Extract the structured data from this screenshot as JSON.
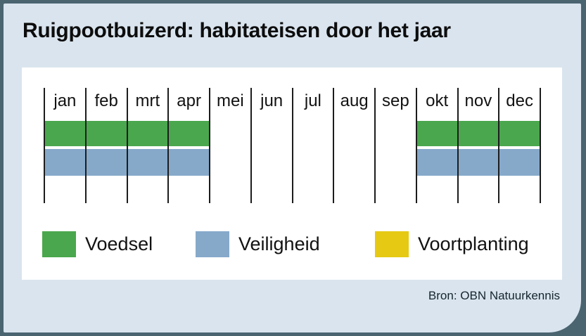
{
  "title": "Ruigpootbuizerd: habitateisen door het jaar",
  "source": "Bron: OBN Natuurkennis",
  "colors": {
    "frame": "#4a6470",
    "panel": "#d9e4ee",
    "card": "#ffffff",
    "line": "#1c1c1c"
  },
  "chart_data": {
    "type": "heatmap",
    "title": "Ruigpootbuizerd: habitateisen door het jaar",
    "categories": [
      "jan",
      "feb",
      "mrt",
      "apr",
      "mei",
      "jun",
      "jul",
      "aug",
      "sep",
      "okt",
      "nov",
      "dec"
    ],
    "series": [
      {
        "name": "Voedsel",
        "color": "#4aa74d",
        "values": [
          1,
          1,
          1,
          1,
          0,
          0,
          0,
          0,
          0,
          1,
          1,
          1
        ]
      },
      {
        "name": "Veiligheid",
        "color": "#86a9ca",
        "values": [
          1,
          1,
          1,
          1,
          0,
          0,
          0,
          0,
          0,
          1,
          1,
          1
        ]
      },
      {
        "name": "Voortplanting",
        "color": "#e6c913",
        "values": [
          0,
          0,
          0,
          0,
          0,
          0,
          0,
          0,
          0,
          0,
          0,
          0
        ]
      }
    ],
    "legend_position": "bottom",
    "grid": true
  }
}
